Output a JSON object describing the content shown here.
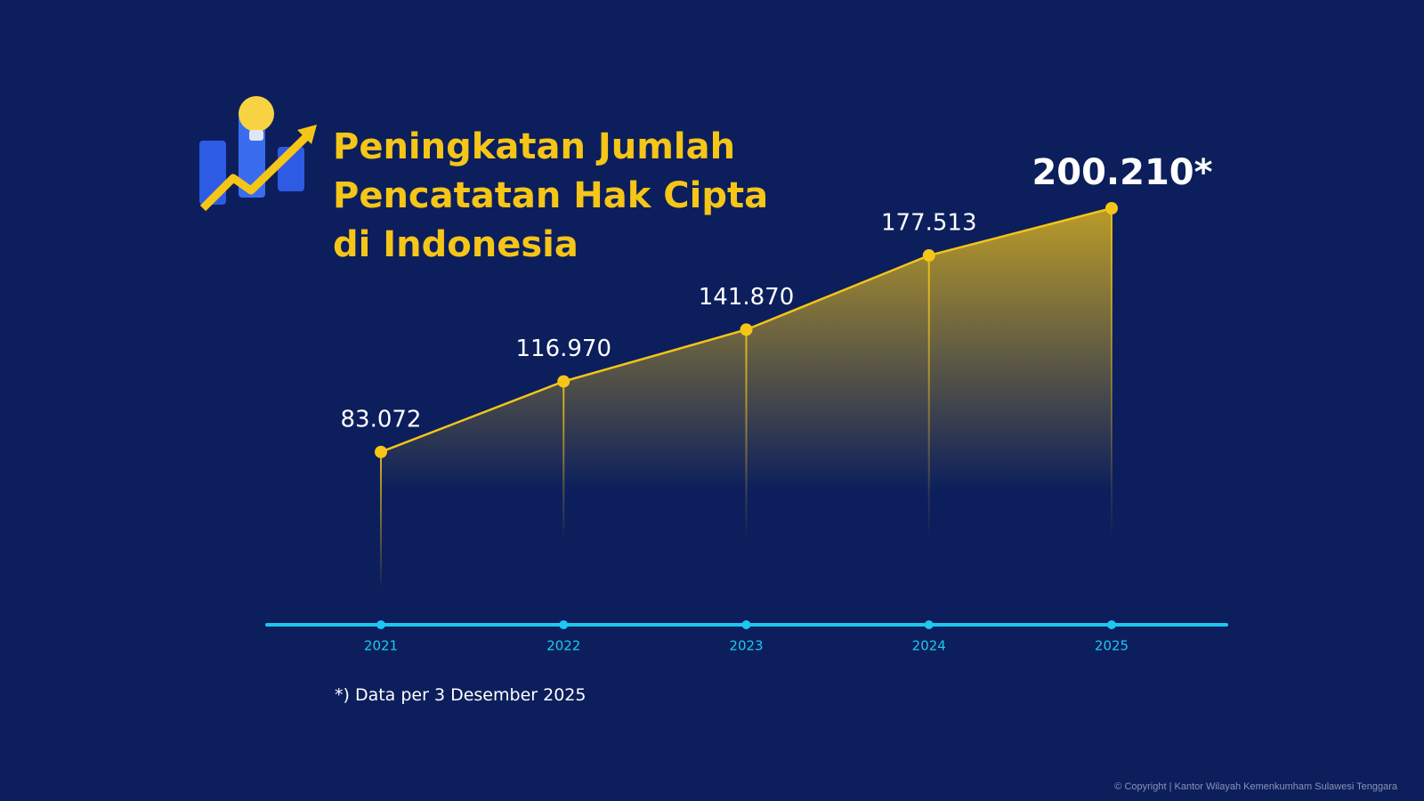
{
  "chart_data": {
    "type": "line",
    "title": "Peningkatan Jumlah Pencatatan Hak Cipta di Indonesia",
    "categories": [
      "2021",
      "2022",
      "2023",
      "2024",
      "2025"
    ],
    "values": [
      83072,
      116970,
      141870,
      177513,
      200210
    ],
    "value_labels": [
      "83.072",
      "116.970",
      "141.870",
      "177.513",
      "200.210*"
    ],
    "color": "#f5c518",
    "axis_color": "#1ec8f0",
    "footnote": "*) Data per 3 Desember 2025",
    "copyright": "© Copyright | Kantor Wilayah Kemenkumham Sulawesi Tenggara"
  }
}
